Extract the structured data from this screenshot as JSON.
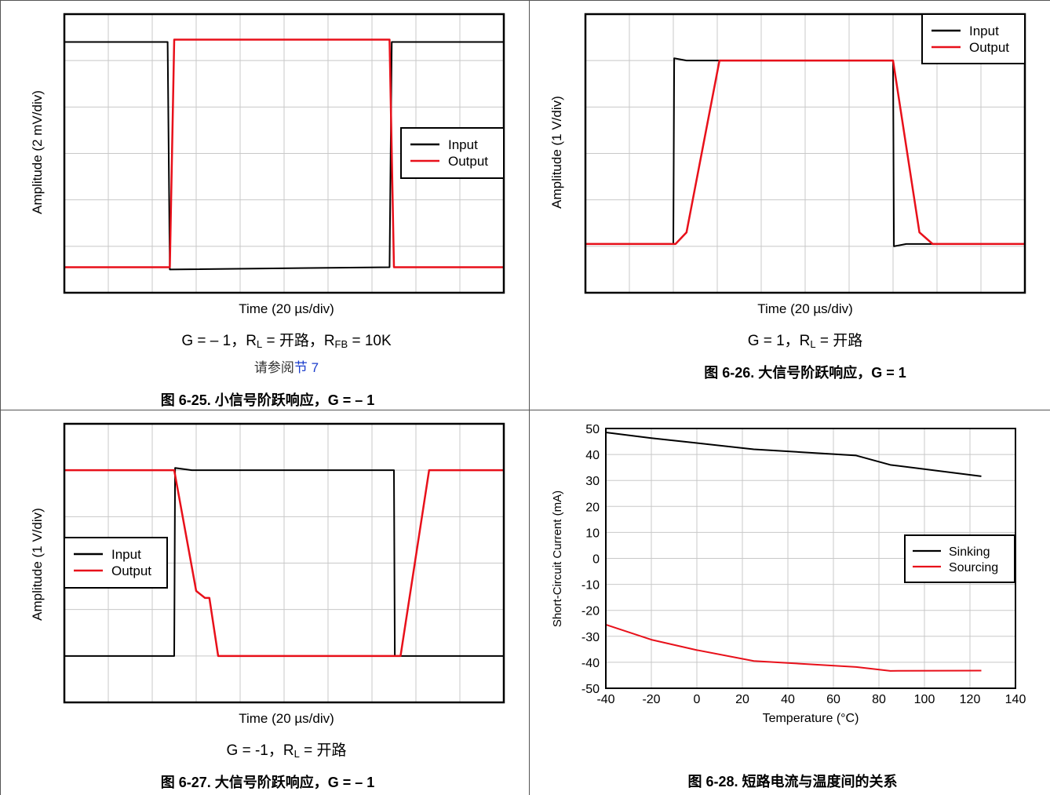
{
  "charts": [
    {
      "x_label": "Time (20 µs/div)",
      "y_label": "Amplitude (2 mV/div)",
      "condition": {
        "p1": "G = – 1，R",
        "sub1": "L",
        "p2": " = 开路，R",
        "sub2": "FB",
        "p3": " = 10K"
      },
      "reference": {
        "text": "请参阅",
        "link": "节 7"
      },
      "caption": "图 6-25. 小信号阶跃响应，G = – 1",
      "legend": {
        "input": "Input",
        "output": "Output"
      }
    },
    {
      "x_label": "Time (20 µs/div)",
      "y_label": "Amplitude (1 V/div)",
      "condition": {
        "p1": "G = 1，R",
        "sub1": "L",
        "p2": " = 开路"
      },
      "caption": "图 6-26. 大信号阶跃响应，G = 1",
      "legend": {
        "input": "Input",
        "output": "Output"
      }
    },
    {
      "x_label": "Time (20 µs/div)",
      "y_label": "Amplitude (1 V/div)",
      "condition": {
        "p1": "G = -1，R",
        "sub1": "L",
        "p2": " = 开路"
      },
      "caption": "图 6-27. 大信号阶跃响应，G = – 1",
      "legend": {
        "input": "Input",
        "output": "Output"
      }
    },
    {
      "x_label": "Temperature (°C)",
      "y_label": "Short-Circuit Current (mA)",
      "caption": "图 6-28. 短路电流与温度间的关系",
      "legend": {
        "sinking": "Sinking",
        "sourcing": "Sourcing"
      }
    }
  ],
  "colors": {
    "input": "#000000",
    "output": "#e8101a",
    "grid": "#c8c8c8"
  },
  "chart_data": [
    {
      "type": "line",
      "title": "",
      "xlabel": "Time (20 µs/div)",
      "ylabel": "Amplitude (2 mV/div)",
      "x_divisions": 10,
      "y_divisions": 6,
      "grid": true,
      "legend_position": "right",
      "series": [
        {
          "name": "Input",
          "x": [
            0,
            2.35,
            2.4,
            7.4,
            7.45,
            10
          ],
          "y": [
            5.4,
            5.4,
            0.5,
            0.55,
            5.4,
            5.4
          ]
        },
        {
          "name": "Output",
          "x": [
            0,
            2.4,
            2.5,
            7.4,
            7.5,
            10
          ],
          "y": [
            0.55,
            0.55,
            5.45,
            5.45,
            0.55,
            0.55
          ]
        }
      ]
    },
    {
      "type": "line",
      "title": "",
      "xlabel": "Time (20 µs/div)",
      "ylabel": "Amplitude (1 V/div)",
      "x_divisions": 10,
      "y_divisions": 6,
      "grid": true,
      "legend_position": "top-right",
      "series": [
        {
          "name": "Input",
          "x": [
            0,
            2.0,
            2.02,
            2.3,
            7.0,
            7.02,
            7.3,
            10
          ],
          "y": [
            1.05,
            1.05,
            5.05,
            5.0,
            5.0,
            1.0,
            1.05,
            1.05
          ]
        },
        {
          "name": "Output",
          "x": [
            0,
            2.05,
            2.3,
            3.05,
            7.0,
            7.6,
            7.9,
            10
          ],
          "y": [
            1.05,
            1.05,
            1.3,
            5.0,
            5.0,
            1.3,
            1.05,
            1.05
          ]
        }
      ]
    },
    {
      "type": "line",
      "title": "",
      "xlabel": "Time (20 µs/div)",
      "ylabel": "Amplitude (1 V/div)",
      "x_divisions": 10,
      "y_divisions": 6,
      "grid": true,
      "legend_position": "left",
      "series": [
        {
          "name": "Input",
          "x": [
            0,
            2.5,
            2.52,
            2.9,
            7.5,
            7.52,
            7.9,
            10
          ],
          "y": [
            1.0,
            1.0,
            5.05,
            5.0,
            5.0,
            1.0,
            1.0,
            1.0
          ]
        },
        {
          "name": "Output",
          "x": [
            0,
            2.5,
            3.0,
            3.2,
            3.3,
            3.5,
            7.4,
            7.65,
            8.3,
            10
          ],
          "y": [
            5.0,
            5.0,
            2.4,
            2.25,
            2.25,
            1.0,
            1.0,
            1.0,
            5.0,
            5.0
          ]
        }
      ]
    },
    {
      "type": "line",
      "title": "",
      "xlabel": "Temperature (°C)",
      "ylabel": "Short-Circuit Current (mA)",
      "xlim": [
        -40,
        140
      ],
      "ylim": [
        -50,
        50
      ],
      "x_ticks": [
        -40,
        -20,
        0,
        20,
        40,
        60,
        80,
        100,
        120,
        140
      ],
      "y_ticks": [
        50,
        40,
        30,
        20,
        10,
        0,
        -10,
        -20,
        -30,
        -40,
        -50
      ],
      "grid": true,
      "legend_position": "right",
      "series": [
        {
          "name": "Sinking",
          "x": [
            -40,
            -20,
            0,
            25,
            70,
            85,
            125
          ],
          "y": [
            48.5,
            46.3,
            44.4,
            42.0,
            39.6,
            36.0,
            31.6
          ]
        },
        {
          "name": "Sourcing",
          "x": [
            -40,
            -20,
            0,
            25,
            70,
            85,
            125
          ],
          "y": [
            -25.5,
            -31.3,
            -35.3,
            -39.5,
            -41.8,
            -43.3,
            -43.2
          ]
        }
      ]
    }
  ]
}
